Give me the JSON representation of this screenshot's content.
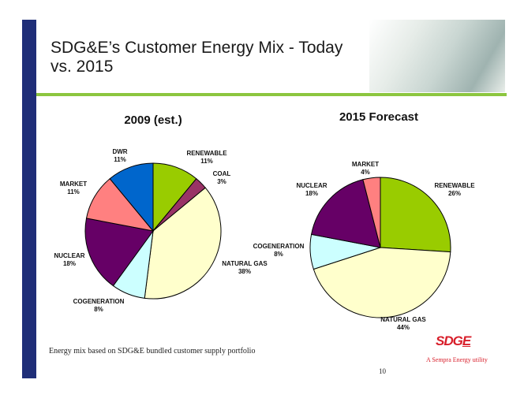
{
  "slide": {
    "title": "SDG&E’s Customer Energy Mix - Today vs. 2015",
    "note": "Energy mix based on SDG&E bundled customer supply portfolio",
    "page_number": "10",
    "logo_text": "SDGE",
    "tagline": "A Sempra Energy utility"
  },
  "colors": {
    "RENEWABLE": "#99cc00",
    "COAL": "#993366",
    "NATURAL GAS": "#ffffcc",
    "COGENERATION": "#ccffff",
    "NUCLEAR": "#660066",
    "MARKET": "#ff8080",
    "DWR": "#0066cc",
    "sidebar": "#1f2e78",
    "rule": "#8cc63f"
  },
  "chart_data": [
    {
      "type": "pie",
      "title": "2009 (est.)",
      "slices": [
        {
          "label": "RENEWABLE",
          "value": 11,
          "text": "11%"
        },
        {
          "label": "COAL",
          "value": 3,
          "text": "3%"
        },
        {
          "label": "NATURAL GAS",
          "value": 38,
          "text": "38%"
        },
        {
          "label": "COGENERATION",
          "value": 8,
          "text": "8%"
        },
        {
          "label": "NUCLEAR",
          "value": 18,
          "text": "18%"
        },
        {
          "label": "MARKET",
          "value": 11,
          "text": "11%"
        },
        {
          "label": "DWR",
          "value": 11,
          "text": "11%"
        }
      ]
    },
    {
      "type": "pie",
      "title": "2015 Forecast",
      "slices": [
        {
          "label": "RENEWABLE",
          "value": 26,
          "text": "26%"
        },
        {
          "label": "NATURAL GAS",
          "value": 44,
          "text": "44%"
        },
        {
          "label": "COGENERATION",
          "value": 8,
          "text": "8%"
        },
        {
          "label": "NUCLEAR",
          "value": 18,
          "text": "18%"
        },
        {
          "label": "MARKET",
          "value": 4,
          "text": "4%"
        }
      ]
    }
  ]
}
